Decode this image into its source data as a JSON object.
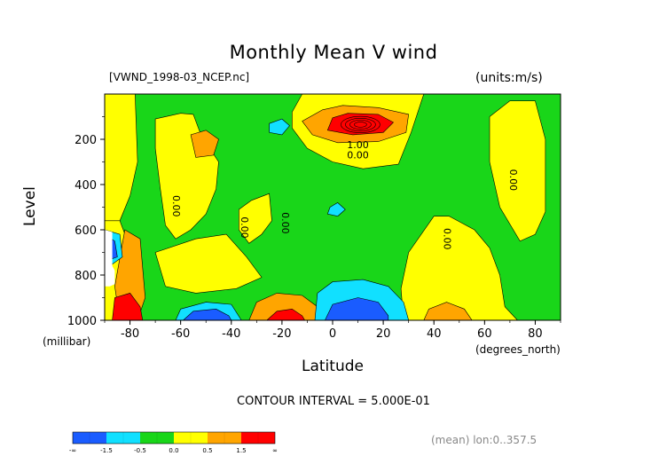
{
  "title": "Monthly Mean V wind",
  "file_label": "[VWND_1998-03_NCEP.nc]",
  "units_label": "(units:m/s)",
  "xlabel": "Latitude",
  "ylabel": "Level",
  "y_unit_label": "(millibar)",
  "x_unit_label": "(degrees_north)",
  "contour_interval_text": "CONTOUR INTERVAL = 5.000E-01",
  "mean_text": "(mean) lon:0..357.5",
  "colors": {
    "blue": "#1a5cff",
    "cyan": "#11e0ff",
    "green": "#19d619",
    "yellow": "#ffff00",
    "orange": "#ffa500",
    "red": "#ff0000",
    "missing": "#ffffff"
  },
  "chart_data": {
    "type": "heatmap",
    "title": "Monthly Mean V wind",
    "xlabel": "Latitude",
    "ylabel": "Level",
    "xlim": [
      -90,
      90
    ],
    "ylim": [
      1000,
      0
    ],
    "x_ticks": [
      -80,
      -60,
      -40,
      -20,
      0,
      20,
      40,
      60,
      80
    ],
    "y_ticks": [
      200,
      400,
      600,
      800,
      1000
    ],
    "contour_interval": 0.5,
    "contour_labels": [
      {
        "text": "0.00",
        "x": -63,
        "y": 495
      },
      {
        "text": "0.00",
        "x": -36,
        "y": 590
      },
      {
        "text": "0.00",
        "x": -20,
        "y": 570
      },
      {
        "text": "1.00",
        "x": 10,
        "y": 240
      },
      {
        "text": "0.00",
        "x": 10,
        "y": 285
      },
      {
        "text": "0.00",
        "x": 44,
        "y": 640
      },
      {
        "text": "0.00",
        "x": 70,
        "y": 380
      }
    ],
    "colorbar": {
      "bins": [
        {
          "color": "blue",
          "range": [
            "-inf",
            -1.5
          ]
        },
        {
          "color": "cyan",
          "range": [
            -1.5,
            -0.5
          ]
        },
        {
          "color": "green",
          "range": [
            -0.5,
            0.0
          ]
        },
        {
          "color": "yellow",
          "range": [
            0.0,
            0.5
          ]
        },
        {
          "color": "orange",
          "range": [
            0.5,
            1.5
          ]
        },
        {
          "color": "red",
          "range": [
            1.5,
            "inf"
          ]
        }
      ],
      "tick_labels": [
        "-∞",
        "-1.5",
        "-0.5",
        "0.0",
        "0.5",
        "1.5",
        "∞"
      ]
    },
    "regions": [
      {
        "name": "yellow-west-upper",
        "color": "yellow",
        "points": [
          [
            -90,
            0
          ],
          [
            -78,
            0
          ],
          [
            -77,
            300
          ],
          [
            -80,
            450
          ],
          [
            -84,
            560
          ],
          [
            -90,
            560
          ]
        ]
      },
      {
        "name": "yellow-west-lower",
        "color": "yellow",
        "points": [
          [
            -90,
            560
          ],
          [
            -84,
            560
          ],
          [
            -80,
            680
          ],
          [
            -76,
            800
          ],
          [
            -78,
            950
          ],
          [
            -82,
            1000
          ],
          [
            -90,
            1000
          ]
        ]
      },
      {
        "name": "yellow-column-60",
        "color": "yellow",
        "points": [
          [
            -70,
            110
          ],
          [
            -60,
            85
          ],
          [
            -55,
            90
          ],
          [
            -52,
            180
          ],
          [
            -45,
            300
          ],
          [
            -46,
            420
          ],
          [
            -50,
            530
          ],
          [
            -56,
            600
          ],
          [
            -62,
            640
          ],
          [
            -66,
            580
          ],
          [
            -68,
            420
          ],
          [
            -70,
            240
          ]
        ]
      },
      {
        "name": "yellow-column-30",
        "color": "yellow",
        "points": [
          [
            -37,
            510
          ],
          [
            -32,
            470
          ],
          [
            -25,
            440
          ],
          [
            -24,
            560
          ],
          [
            -28,
            620
          ],
          [
            -33,
            660
          ],
          [
            -37,
            600
          ]
        ]
      },
      {
        "name": "yellow-top-center",
        "color": "yellow",
        "points": [
          [
            -12,
            0
          ],
          [
            36,
            0
          ],
          [
            31,
            170
          ],
          [
            26,
            310
          ],
          [
            12,
            330
          ],
          [
            0,
            300
          ],
          [
            -10,
            240
          ],
          [
            -16,
            150
          ],
          [
            -16,
            80
          ]
        ]
      },
      {
        "name": "yellow-east-lower",
        "color": "yellow",
        "points": [
          [
            28,
            1000
          ],
          [
            27,
            860
          ],
          [
            30,
            700
          ],
          [
            40,
            540
          ],
          [
            46,
            540
          ],
          [
            56,
            600
          ],
          [
            62,
            680
          ],
          [
            66,
            800
          ],
          [
            68,
            940
          ],
          [
            73,
            1000
          ]
        ]
      },
      {
        "name": "yellow-east-upper",
        "color": "yellow",
        "points": [
          [
            62,
            100
          ],
          [
            70,
            30
          ],
          [
            80,
            30
          ],
          [
            84,
            200
          ],
          [
            84,
            520
          ],
          [
            80,
            620
          ],
          [
            74,
            650
          ],
          [
            66,
            500
          ],
          [
            62,
            300
          ]
        ]
      },
      {
        "name": "yellow-south-mid",
        "color": "yellow",
        "points": [
          [
            -70,
            700
          ],
          [
            -54,
            640
          ],
          [
            -42,
            620
          ],
          [
            -34,
            720
          ],
          [
            -28,
            810
          ],
          [
            -38,
            860
          ],
          [
            -54,
            880
          ],
          [
            -66,
            850
          ]
        ]
      },
      {
        "name": "orange-west-band",
        "color": "orange",
        "points": [
          [
            -82,
            600
          ],
          [
            -76,
            640
          ],
          [
            -74,
            900
          ],
          [
            -77,
            1000
          ],
          [
            -84,
            1000
          ],
          [
            -86,
            850
          ]
        ]
      },
      {
        "name": "orange-minor-60",
        "color": "orange",
        "points": [
          [
            -56,
            180
          ],
          [
            -50,
            160
          ],
          [
            -45,
            200
          ],
          [
            -47,
            270
          ],
          [
            -54,
            280
          ]
        ]
      },
      {
        "name": "orange-equator-ring",
        "color": "orange",
        "points": [
          [
            -4,
            70
          ],
          [
            4,
            50
          ],
          [
            18,
            60
          ],
          [
            30,
            90
          ],
          [
            29,
            170
          ],
          [
            18,
            210
          ],
          [
            2,
            215
          ],
          [
            -8,
            180
          ],
          [
            -12,
            120
          ]
        ]
      },
      {
        "name": "orange-south20",
        "color": "orange",
        "points": [
          [
            -33,
            1000
          ],
          [
            -30,
            920
          ],
          [
            -22,
            880
          ],
          [
            -12,
            890
          ],
          [
            -6,
            940
          ],
          [
            -4,
            1000
          ]
        ]
      },
      {
        "name": "orange-north40",
        "color": "orange",
        "points": [
          [
            36,
            1000
          ],
          [
            38,
            950
          ],
          [
            45,
            920
          ],
          [
            52,
            950
          ],
          [
            55,
            1000
          ]
        ]
      },
      {
        "name": "red-equator-core",
        "color": "red",
        "points": [
          [
            0,
            105
          ],
          [
            6,
            85
          ],
          [
            18,
            90
          ],
          [
            24,
            125
          ],
          [
            20,
            170
          ],
          [
            8,
            180
          ],
          [
            -2,
            160
          ]
        ]
      },
      {
        "name": "red-south80",
        "color": "red",
        "points": [
          [
            -86,
            900
          ],
          [
            -80,
            880
          ],
          [
            -76,
            940
          ],
          [
            -75,
            1000
          ],
          [
            -87,
            1000
          ]
        ]
      },
      {
        "name": "red-south20",
        "color": "red",
        "points": [
          [
            -26,
            1000
          ],
          [
            -22,
            960
          ],
          [
            -16,
            950
          ],
          [
            -12,
            980
          ],
          [
            -11,
            1000
          ]
        ]
      },
      {
        "name": "cyan-south50",
        "color": "cyan",
        "points": [
          [
            -62,
            1000
          ],
          [
            -60,
            950
          ],
          [
            -50,
            920
          ],
          [
            -40,
            930
          ],
          [
            -36,
            1000
          ]
        ]
      },
      {
        "name": "cyan-equator-lower",
        "color": "cyan",
        "points": [
          [
            -7,
            1000
          ],
          [
            -6,
            880
          ],
          [
            0,
            830
          ],
          [
            12,
            820
          ],
          [
            22,
            850
          ],
          [
            28,
            920
          ],
          [
            30,
            1000
          ]
        ]
      },
      {
        "name": "cyan-west-edge",
        "color": "cyan",
        "points": [
          [
            -90,
            600
          ],
          [
            -84,
            620
          ],
          [
            -83,
            720
          ],
          [
            -88,
            760
          ],
          [
            -90,
            760
          ]
        ]
      },
      {
        "name": "cyan-spot-upper",
        "color": "cyan",
        "points": [
          [
            -25,
            130
          ],
          [
            -20,
            110
          ],
          [
            -17,
            140
          ],
          [
            -20,
            180
          ],
          [
            -25,
            170
          ]
        ]
      },
      {
        "name": "cyan-spot-mid",
        "color": "cyan",
        "points": [
          [
            -1,
            500
          ],
          [
            2,
            480
          ],
          [
            5,
            510
          ],
          [
            2,
            540
          ],
          [
            -2,
            530
          ]
        ]
      },
      {
        "name": "blue-south50",
        "color": "blue",
        "points": [
          [
            -59,
            1000
          ],
          [
            -55,
            960
          ],
          [
            -46,
            950
          ],
          [
            -41,
            980
          ],
          [
            -40,
            1000
          ]
        ]
      },
      {
        "name": "blue-equator-lower",
        "color": "blue",
        "points": [
          [
            -3,
            1000
          ],
          [
            0,
            930
          ],
          [
            10,
            900
          ],
          [
            18,
            920
          ],
          [
            22,
            980
          ],
          [
            22,
            1000
          ]
        ]
      },
      {
        "name": "blue-west-edge",
        "color": "blue",
        "points": [
          [
            -90,
            620
          ],
          [
            -86,
            650
          ],
          [
            -85,
            720
          ],
          [
            -90,
            740
          ]
        ]
      }
    ],
    "missing_region": [
      [
        -90,
        600
      ],
      [
        -87,
        610
      ],
      [
        -87,
        760
      ],
      [
        -86,
        780
      ],
      [
        -86,
        840
      ],
      [
        -88,
        850
      ],
      [
        -90,
        850
      ]
    ]
  }
}
